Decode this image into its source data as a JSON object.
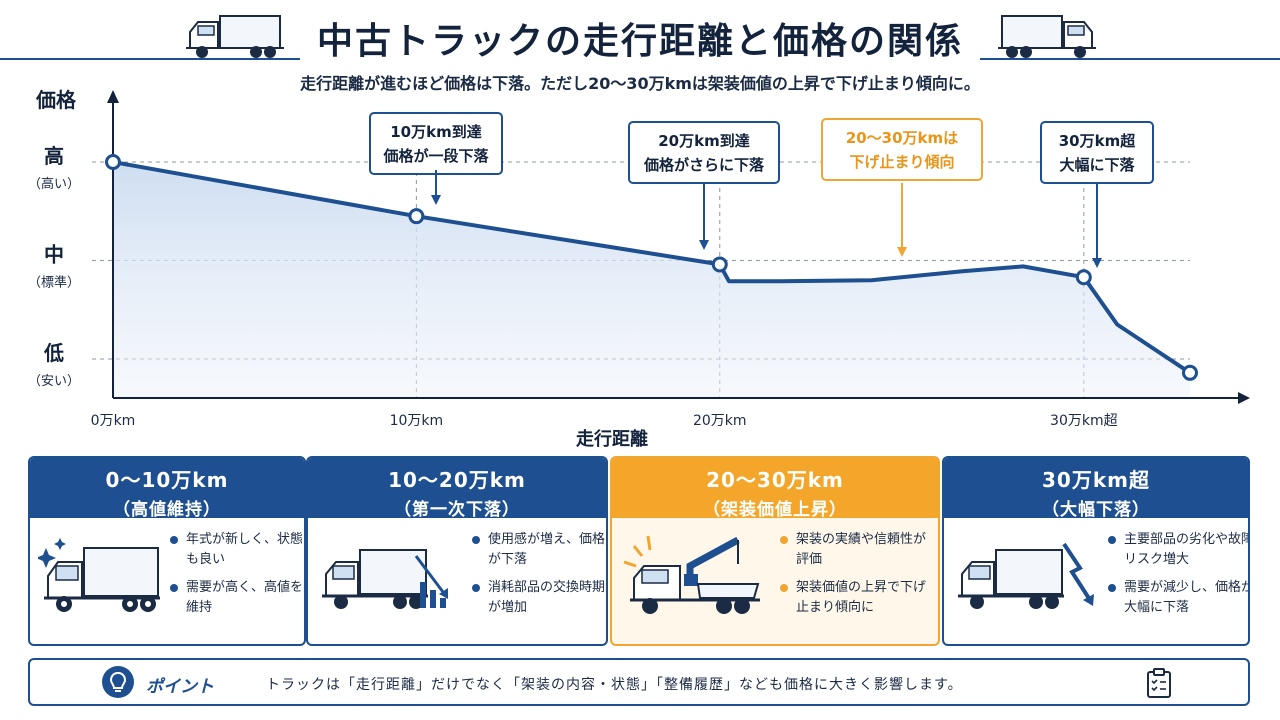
{
  "header": {
    "title": "中古トラックの走行距離と価格の関係",
    "subtitle": "走行距離が進むほど価格は下落。ただし20〜30万kmは架装価値の上昇で下げ止まり傾向に。"
  },
  "chart_data": {
    "type": "line",
    "title": "中古トラックの走行距離と価格の関係",
    "xlabel": "走行距離",
    "ylabel": "価格",
    "x_unit": "万km",
    "xlim": [
      0,
      35
    ],
    "ylim": [
      0,
      3
    ],
    "x_ticks": [
      {
        "value": 0,
        "label": "0万km"
      },
      {
        "value": 10,
        "label": "10万km"
      },
      {
        "value": 20,
        "label": "20万km"
      },
      {
        "value": 30,
        "label": "30万km超"
      }
    ],
    "y_ticks": [
      {
        "value": 1,
        "label": "低",
        "sub": "（安い）"
      },
      {
        "value": 2,
        "label": "中",
        "sub": "（標準）"
      },
      {
        "value": 3,
        "label": "高",
        "sub": "（高い）"
      }
    ],
    "grid": "dashed at tick levels",
    "series": [
      {
        "color": "#1d4f91",
        "points": [
          {
            "x": 0,
            "y": 3.0,
            "marker": true
          },
          {
            "x": 10,
            "y": 2.45,
            "marker": true
          },
          {
            "x": 20,
            "y": 1.96,
            "marker": true
          },
          {
            "x": 20.3,
            "y": 1.79,
            "marker": false
          },
          {
            "x": 22,
            "y": 1.79,
            "marker": false
          },
          {
            "x": 25,
            "y": 1.8,
            "marker": false
          },
          {
            "x": 28,
            "y": 1.89,
            "marker": false
          },
          {
            "x": 30,
            "y": 1.94,
            "marker": false
          },
          {
            "x": 32,
            "y": 1.83,
            "marker": true
          },
          {
            "x": 33.1,
            "y": 1.35,
            "marker": false
          },
          {
            "x": 35.5,
            "y": 0.86,
            "marker": true
          }
        ]
      }
    ],
    "annotations": [
      {
        "lines": [
          "10万km到達",
          "価格が一段下落"
        ],
        "x": 10,
        "color": "#1d4f91",
        "highlight": false
      },
      {
        "lines": [
          "20万km到達",
          "価格がさらに下落"
        ],
        "x": 20,
        "color": "#1d4f91",
        "highlight": false
      },
      {
        "lines": [
          "20〜30万kmは",
          "下げ止まり傾向"
        ],
        "x": 26,
        "color": "#f0a630",
        "highlight": true
      },
      {
        "lines": [
          "30万km超",
          "大幅に下落"
        ],
        "x": 32,
        "color": "#1d4f91",
        "highlight": false
      }
    ]
  },
  "cards": [
    {
      "range": "0〜10万km",
      "label": "（高値維持）",
      "icon": "truck-sparkle-icon",
      "bullets": [
        "年式が新しく、状態も良い",
        "需要が高く、高値を維持"
      ],
      "highlight": false
    },
    {
      "range": "10〜20万km",
      "label": "（第一次下落）",
      "icon": "truck-down-chart-icon",
      "bullets": [
        "使用感が増え、価格が下落",
        "消耗部品の交換時期が増加"
      ],
      "highlight": false
    },
    {
      "range": "20〜30万km",
      "label": "（架装価値上昇）",
      "icon": "crane-truck-icon",
      "bullets": [
        "架装の実績や信頼性が評価",
        "架装価値の上昇で下げ止まり傾向に"
      ],
      "highlight": true
    },
    {
      "range": "30万km超",
      "label": "（大幅下落）",
      "icon": "truck-zigzag-down-icon",
      "bullets": [
        "主要部品の劣化や故障リスク増大",
        "需要が減少し、価格が大幅に下落"
      ],
      "highlight": false
    }
  ],
  "point": {
    "label": "ポイント",
    "text": "トラックは「走行距離」だけでなく「架装の内容・状態」「整備履歴」なども価格に大きく影響します。",
    "icon": "lightbulb-icon",
    "right_icon": "clipboard-checklist-icon"
  },
  "colors": {
    "primary": "#1d4f91",
    "accent": "#f0a630",
    "fill": "#dbe7f5"
  }
}
